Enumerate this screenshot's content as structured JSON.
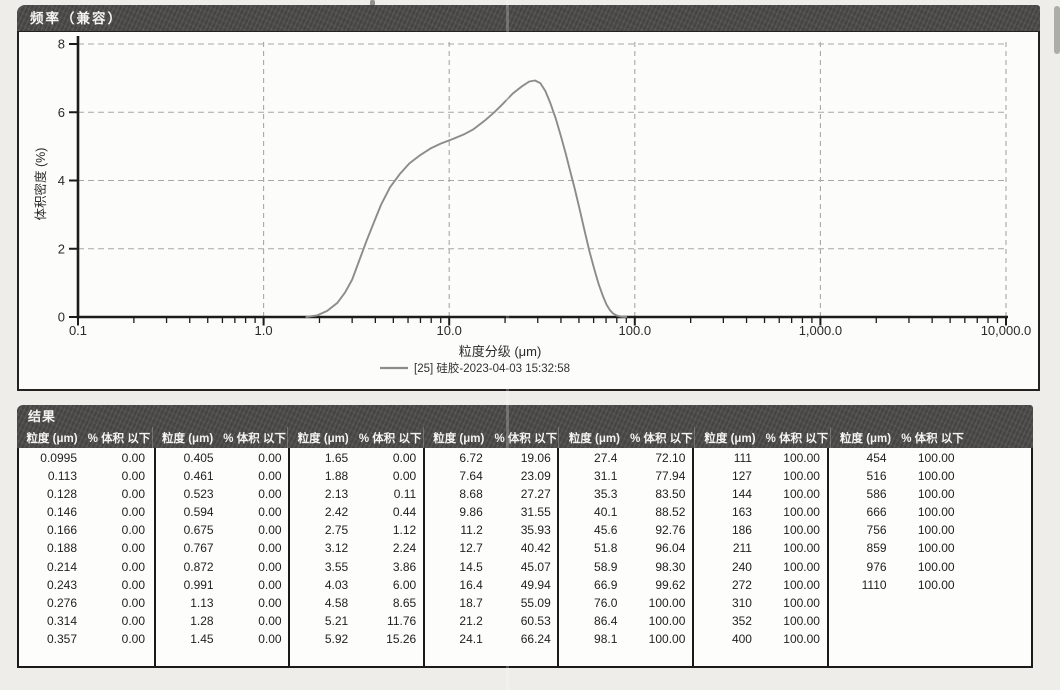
{
  "chart": {
    "title_bar": "频率（兼容）",
    "curve_color": "#8c8c8a",
    "axis_color": "#1d1c1a",
    "grid_color": "#a8a7a3"
  },
  "chart_data": {
    "type": "line",
    "title": "频率（兼容）",
    "xlabel": "粒度分级 (μm)",
    "ylabel": "体积密度 (%)",
    "x_scale": "log",
    "xlim": [
      0.1,
      10000
    ],
    "ylim": [
      0,
      8
    ],
    "x_tick_values": [
      0.1,
      1,
      10,
      100,
      1000,
      10000
    ],
    "x_tick_labels": [
      "0.1",
      "1.0",
      "10.0",
      "100.0",
      "1,000.0",
      "10,000.0"
    ],
    "y_tick_values": [
      0,
      2,
      4,
      6,
      8
    ],
    "grid": true,
    "legend_position": "bottom",
    "series": [
      {
        "name": "[25] 硅胶-2023-04-03 15:32:58",
        "x": [
          1.7,
          1.95,
          2.2,
          2.5,
          2.75,
          3.0,
          3.3,
          3.6,
          3.95,
          4.3,
          4.8,
          5.4,
          6.1,
          7.0,
          8.0,
          9.0,
          10.5,
          12.0,
          13.5,
          15.5,
          17.5,
          19.5,
          22.0,
          24.5,
          27.0,
          29.0,
          31.0,
          33.0,
          35.0,
          37.5,
          40.0,
          42.5,
          45.0,
          47.5,
          50.5,
          53.5,
          57.0,
          60.5,
          64.0,
          67.5,
          70.5,
          73.5,
          76.5,
          80.0,
          85.0,
          90.0
        ],
        "y": [
          0,
          0.05,
          0.18,
          0.42,
          0.72,
          1.1,
          1.7,
          2.25,
          2.8,
          3.3,
          3.8,
          4.18,
          4.5,
          4.75,
          4.95,
          5.08,
          5.22,
          5.35,
          5.5,
          5.75,
          6.0,
          6.25,
          6.55,
          6.75,
          6.9,
          6.93,
          6.85,
          6.62,
          6.28,
          5.82,
          5.3,
          4.78,
          4.25,
          3.75,
          3.15,
          2.55,
          1.92,
          1.4,
          0.95,
          0.6,
          0.36,
          0.2,
          0.1,
          0.04,
          0.01,
          0
        ]
      }
    ]
  },
  "results": {
    "title": "结果",
    "column_headers": {
      "size": "粒度 (μm)",
      "percent": "% 体积 以下"
    },
    "groups": [
      {
        "rows": [
          [
            "0.0995",
            "0.00"
          ],
          [
            "0.113",
            "0.00"
          ],
          [
            "0.128",
            "0.00"
          ],
          [
            "0.146",
            "0.00"
          ],
          [
            "0.166",
            "0.00"
          ],
          [
            "0.188",
            "0.00"
          ],
          [
            "0.214",
            "0.00"
          ],
          [
            "0.243",
            "0.00"
          ],
          [
            "0.276",
            "0.00"
          ],
          [
            "0.314",
            "0.00"
          ],
          [
            "0.357",
            "0.00"
          ]
        ]
      },
      {
        "rows": [
          [
            "0.405",
            "0.00"
          ],
          [
            "0.461",
            "0.00"
          ],
          [
            "0.523",
            "0.00"
          ],
          [
            "0.594",
            "0.00"
          ],
          [
            "0.675",
            "0.00"
          ],
          [
            "0.767",
            "0.00"
          ],
          [
            "0.872",
            "0.00"
          ],
          [
            "0.991",
            "0.00"
          ],
          [
            "1.13",
            "0.00"
          ],
          [
            "1.28",
            "0.00"
          ],
          [
            "1.45",
            "0.00"
          ]
        ]
      },
      {
        "rows": [
          [
            "1.65",
            "0.00"
          ],
          [
            "1.88",
            "0.00"
          ],
          [
            "2.13",
            "0.11"
          ],
          [
            "2.42",
            "0.44"
          ],
          [
            "2.75",
            "1.12"
          ],
          [
            "3.12",
            "2.24"
          ],
          [
            "3.55",
            "3.86"
          ],
          [
            "4.03",
            "6.00"
          ],
          [
            "4.58",
            "8.65"
          ],
          [
            "5.21",
            "11.76"
          ],
          [
            "5.92",
            "15.26"
          ]
        ]
      },
      {
        "rows": [
          [
            "6.72",
            "19.06"
          ],
          [
            "7.64",
            "23.09"
          ],
          [
            "8.68",
            "27.27"
          ],
          [
            "9.86",
            "31.55"
          ],
          [
            "11.2",
            "35.93"
          ],
          [
            "12.7",
            "40.42"
          ],
          [
            "14.5",
            "45.07"
          ],
          [
            "16.4",
            "49.94"
          ],
          [
            "18.7",
            "55.09"
          ],
          [
            "21.2",
            "60.53"
          ],
          [
            "24.1",
            "66.24"
          ]
        ]
      },
      {
        "rows": [
          [
            "27.4",
            "72.10"
          ],
          [
            "31.1",
            "77.94"
          ],
          [
            "35.3",
            "83.50"
          ],
          [
            "40.1",
            "88.52"
          ],
          [
            "45.6",
            "92.76"
          ],
          [
            "51.8",
            "96.04"
          ],
          [
            "58.9",
            "98.30"
          ],
          [
            "66.9",
            "99.62"
          ],
          [
            "76.0",
            "100.00"
          ],
          [
            "86.4",
            "100.00"
          ],
          [
            "98.1",
            "100.00"
          ]
        ]
      },
      {
        "rows": [
          [
            "111",
            "100.00"
          ],
          [
            "127",
            "100.00"
          ],
          [
            "144",
            "100.00"
          ],
          [
            "163",
            "100.00"
          ],
          [
            "186",
            "100.00"
          ],
          [
            "211",
            "100.00"
          ],
          [
            "240",
            "100.00"
          ],
          [
            "272",
            "100.00"
          ],
          [
            "310",
            "100.00"
          ],
          [
            "352",
            "100.00"
          ],
          [
            "400",
            "100.00"
          ]
        ]
      },
      {
        "rows": [
          [
            "454",
            "100.00"
          ],
          [
            "516",
            "100.00"
          ],
          [
            "586",
            "100.00"
          ],
          [
            "666",
            "100.00"
          ],
          [
            "756",
            "100.00"
          ],
          [
            "859",
            "100.00"
          ],
          [
            "976",
            "100.00"
          ],
          [
            "1110",
            "100.00"
          ]
        ]
      }
    ]
  }
}
